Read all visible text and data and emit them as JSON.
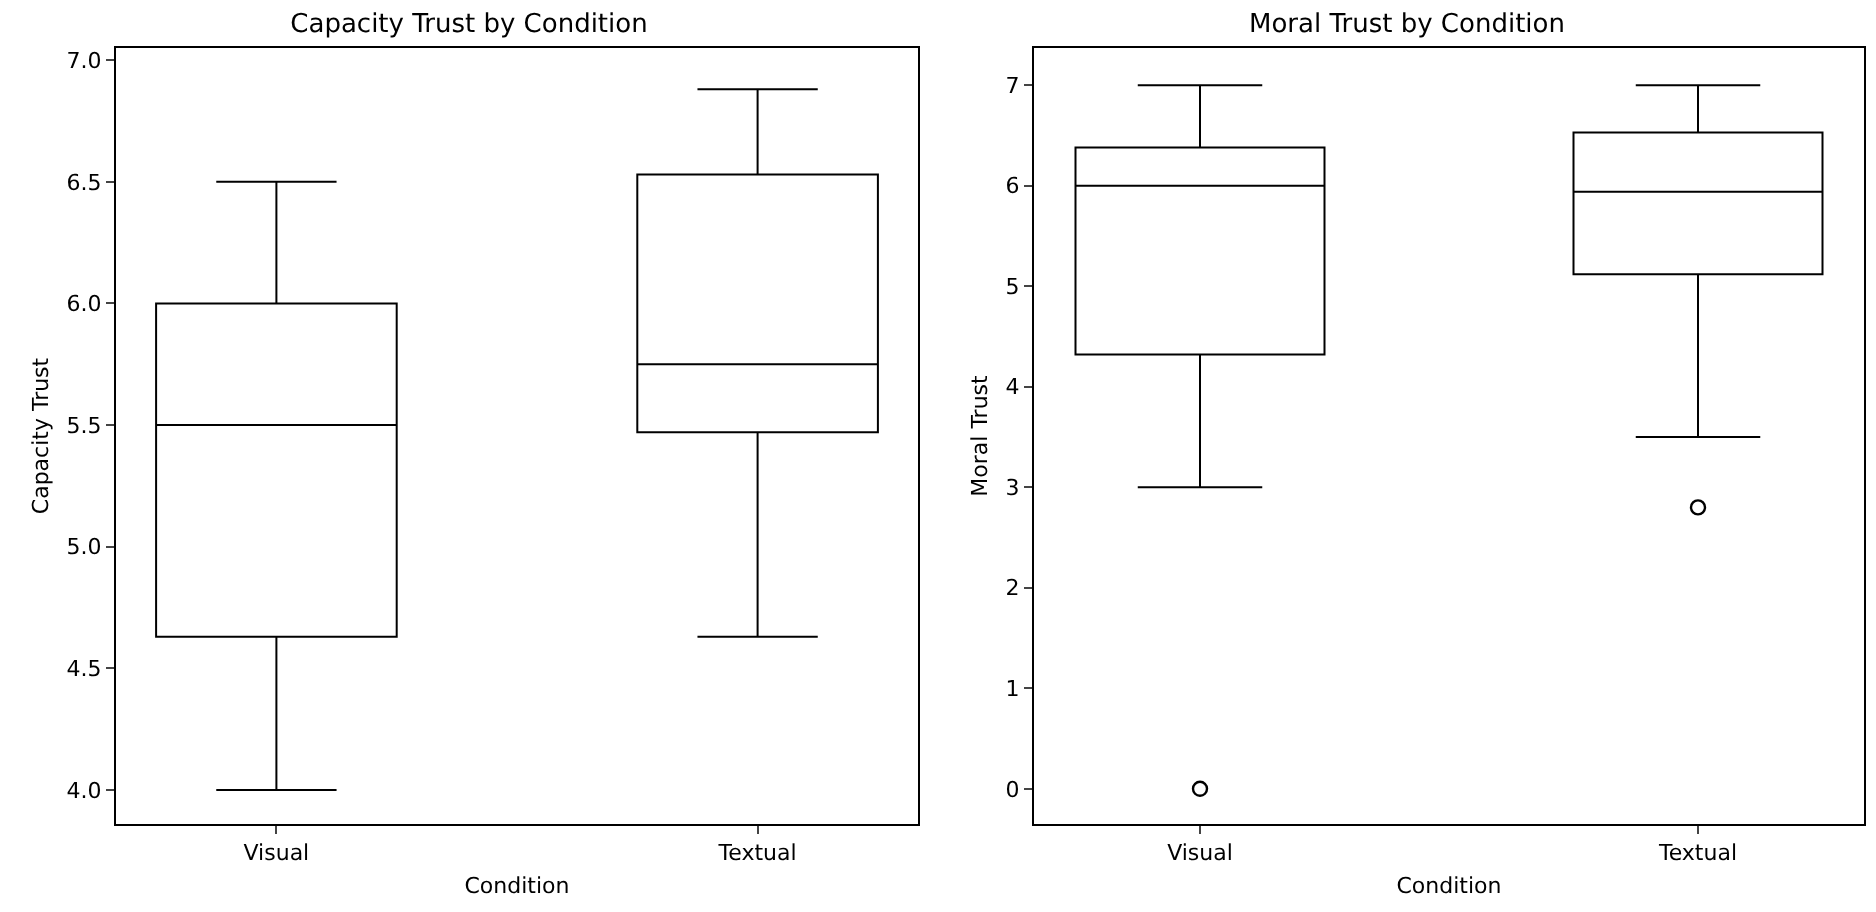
{
  "chart_data": [
    {
      "type": "box",
      "title": "Capacity Trust by Condition",
      "xlabel": "Condition",
      "ylabel": "Capacity Trust",
      "categories": [
        "Visual",
        "Textual"
      ],
      "boxes": [
        {
          "low": 4.0,
          "q1": 4.63,
          "median": 5.5,
          "q3": 6.0,
          "high": 6.5
        },
        {
          "low": 4.63,
          "q1": 5.47,
          "median": 5.75,
          "q3": 6.53,
          "high": 6.88
        }
      ],
      "ylim": [
        3.86,
        7.05
      ],
      "yticks": [
        {
          "value": 4,
          "label": "4.0"
        },
        4.5,
        {
          "value": 5,
          "label": "5.0"
        },
        5.5,
        {
          "value": 6,
          "label": "6.0"
        },
        6.5,
        {
          "value": 7,
          "label": "7.0"
        }
      ],
      "grid": false
    },
    {
      "type": "box",
      "title": "Moral Trust by Condition",
      "xlabel": "Condition",
      "ylabel": "Moral Trust",
      "categories": [
        "Visual",
        "Textual"
      ],
      "boxes": [
        {
          "low": 3.0,
          "q1": 4.32,
          "median": 6.0,
          "q3": 6.38,
          "high": 7.0,
          "outliers": [
            0
          ]
        },
        {
          "low": 3.5,
          "q1": 5.12,
          "median": 5.94,
          "q3": 6.53,
          "high": 7.0,
          "outliers": [
            2.8
          ]
        }
      ],
      "ylim": [
        -0.35,
        7.37
      ],
      "yticks": [
        0,
        1,
        2,
        3,
        4,
        5,
        6,
        7
      ],
      "grid": false
    }
  ]
}
